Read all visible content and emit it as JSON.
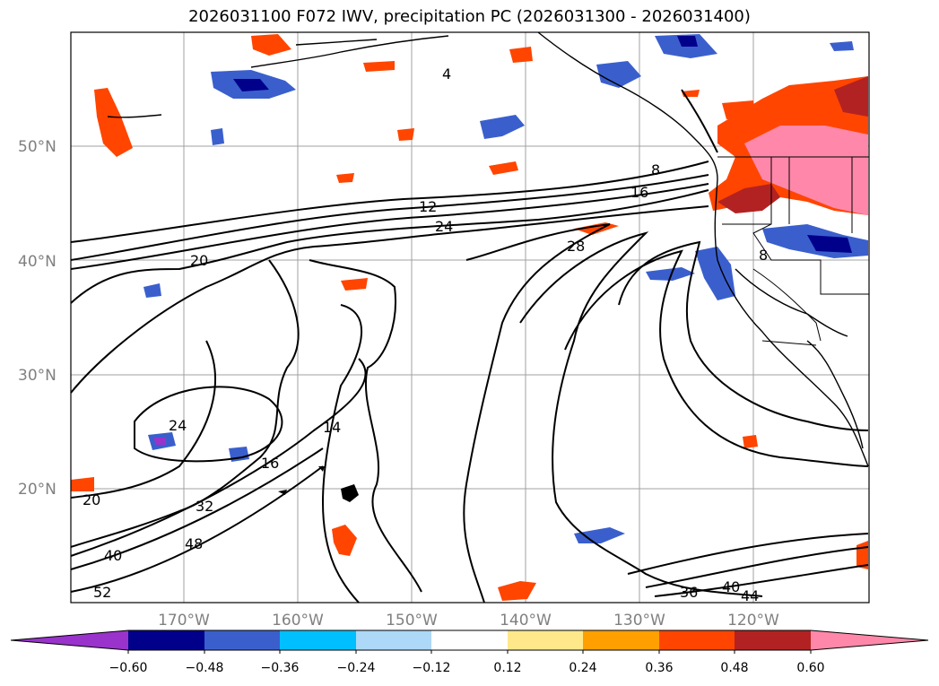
{
  "title": "2026031100 F072 IWV, precipitation PC (2026031300 - 2026031400)",
  "lat_labels": [
    "50°N",
    "40°N",
    "30°N",
    "20°N"
  ],
  "lon_labels": [
    "170°W",
    "160°W",
    "150°W",
    "140°W",
    "130°W",
    "120°W"
  ],
  "contour_labels": [
    "4",
    "8",
    "12",
    "16",
    "20",
    "24",
    "28",
    "24",
    "14",
    "16",
    "20",
    "32",
    "40",
    "48",
    "52",
    "36",
    "40",
    "44",
    "8"
  ],
  "colorbar": {
    "ticks": [
      "−0.60",
      "−0.48",
      "−0.36",
      "−0.24",
      "−0.12",
      "0.12",
      "0.24",
      "0.36",
      "0.48",
      "0.60"
    ],
    "colors": [
      "#9933cc",
      "#00008b",
      "#3a5fcd",
      "#00bfff",
      "#add8f7",
      "#ffffff",
      "#ffe88a",
      "#ff9f00",
      "#ff4500",
      "#b22222",
      "#ff88aa"
    ]
  },
  "colors": {
    "contour": "#000000",
    "coast": "#000000",
    "grid": "#a0a0a0"
  }
}
